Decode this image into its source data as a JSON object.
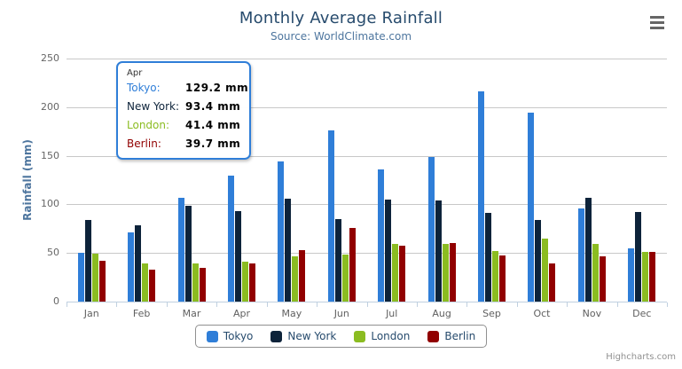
{
  "header": {
    "title": "Monthly Average Rainfall",
    "subtitle": "Source: WorldClimate.com"
  },
  "chart_data": {
    "type": "bar",
    "title": "Monthly Average Rainfall",
    "subtitle": "Source: WorldClimate.com",
    "xlabel": "",
    "ylabel": "Rainfall (mm)",
    "ylim": [
      0,
      250
    ],
    "ytick_step": 50,
    "grid": true,
    "legend_position": "bottom",
    "value_suffix": " mm",
    "categories": [
      "Jan",
      "Feb",
      "Mar",
      "Apr",
      "May",
      "Jun",
      "Jul",
      "Aug",
      "Sep",
      "Oct",
      "Nov",
      "Dec"
    ],
    "series": [
      {
        "name": "Tokyo",
        "color": "#2f7ed8",
        "values": [
          49.9,
          71.5,
          106.4,
          129.2,
          144.0,
          176.0,
          135.6,
          148.5,
          216.4,
          194.1,
          95.6,
          54.4
        ]
      },
      {
        "name": "New York",
        "color": "#0d233a",
        "values": [
          83.6,
          78.8,
          98.5,
          93.4,
          106.0,
          84.5,
          105.0,
          104.3,
          91.2,
          83.5,
          106.6,
          92.3
        ]
      },
      {
        "name": "London",
        "color": "#8bbc21",
        "values": [
          48.9,
          38.8,
          39.3,
          41.4,
          47.0,
          48.3,
          59.0,
          59.6,
          52.4,
          65.2,
          59.3,
          51.2
        ]
      },
      {
        "name": "Berlin",
        "color": "#910000",
        "values": [
          42.4,
          33.2,
          34.5,
          39.7,
          52.6,
          75.5,
          57.4,
          60.4,
          47.6,
          39.1,
          46.8,
          51.1
        ]
      }
    ]
  },
  "tooltip": {
    "header": "Apr",
    "border_color": "#2f7ed8",
    "rows": [
      {
        "name": "Tokyo:",
        "value": "129.2 mm",
        "color": "#2f7ed8"
      },
      {
        "name": "New York:",
        "value": "93.4 mm",
        "color": "#0d233a"
      },
      {
        "name": "London:",
        "value": "41.4 mm",
        "color": "#8bbc21"
      },
      {
        "name": "Berlin:",
        "value": "39.7 mm",
        "color": "#910000"
      }
    ]
  },
  "credits": {
    "label": "Highcharts.com"
  }
}
